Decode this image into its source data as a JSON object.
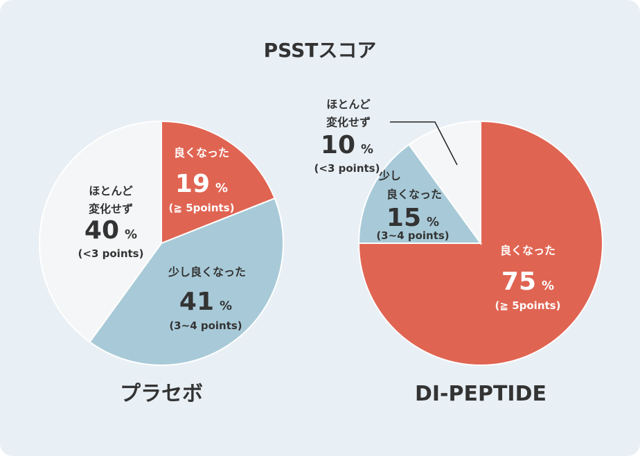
{
  "colors": {
    "background": "#e8eff5",
    "much_better": "#e06452",
    "slightly_better": "#a8cad8",
    "no_change": "#f5f6f7",
    "dark_text": "#333333",
    "light_text": "#ffffff"
  },
  "chart_data": {
    "title": "PSSTスコア",
    "type": "pie",
    "charts": [
      {
        "name": "プラセボ",
        "slices": [
          {
            "key": "much_better",
            "label": "良くなった",
            "value": 19,
            "unit": "%",
            "note": "(≧ 5points)"
          },
          {
            "key": "slightly_better",
            "label": "少し良くなった",
            "value": 41,
            "unit": "%",
            "note": "(3~4 points)"
          },
          {
            "key": "no_change",
            "label_line1": "ほとんど",
            "label_line2": "変化せず",
            "value": 40,
            "unit": "%",
            "note": "(<3 points)"
          }
        ]
      },
      {
        "name": "DI-PEPTIDE",
        "slices": [
          {
            "key": "much_better",
            "label": "良くなった",
            "value": 75,
            "unit": "%",
            "note": "(≧ 5points)"
          },
          {
            "key": "slightly_better",
            "label_line1": "少し",
            "label_line2": "良くなった",
            "value": 15,
            "unit": "%",
            "note": "(3~4 points)"
          },
          {
            "key": "no_change",
            "label_line1": "ほとんど",
            "label_line2": "変化せず",
            "value": 10,
            "unit": "%",
            "note": "(<3 points)"
          }
        ]
      }
    ]
  }
}
